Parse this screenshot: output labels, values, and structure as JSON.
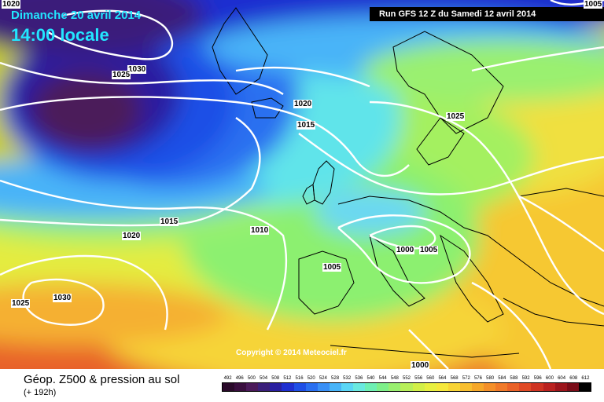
{
  "header": {
    "date": "Dimanche 20 avril 2014",
    "time": "14:00 locale",
    "run": "Run GFS 12 Z du Samedi 12 avril 2014"
  },
  "copyright": "Copyright © 2014 Meteociel.fr",
  "footer": {
    "title": "Géop. Z500 & pression au sol",
    "subtitle": "(+ 192h)"
  },
  "isobar_labels": [
    "1020",
    "1030",
    "1025",
    "1020",
    "1015",
    "1025",
    "1015",
    "1020",
    "1010",
    "1005",
    "1000",
    "1005",
    "1025",
    "1030",
    "1000",
    "1005"
  ],
  "legend": {
    "values": [
      "492",
      "496",
      "500",
      "504",
      "508",
      "512",
      "516",
      "520",
      "524",
      "528",
      "532",
      "536",
      "540",
      "544",
      "548",
      "552",
      "556",
      "560",
      "564",
      "568",
      "572",
      "576",
      "580",
      "584",
      "588",
      "592",
      "596",
      "600",
      "604",
      "608",
      "612"
    ],
    "colors": [
      "#2a0a2a",
      "#3a0f3f",
      "#4b1a5a",
      "#3b1f7a",
      "#2a1fa0",
      "#1f2fd0",
      "#1f4fe6",
      "#2a6ff0",
      "#3a90f6",
      "#48b4f8",
      "#5ad6f6",
      "#6ae9e0",
      "#6ef0b4",
      "#7ef08a",
      "#9af070",
      "#b8f05a",
      "#d2f048",
      "#e8f040",
      "#f6e83c",
      "#f8d436",
      "#f8bf30",
      "#f6a82a",
      "#f4902a",
      "#f07a2a",
      "#ea6228",
      "#e04a26",
      "#cf3423",
      "#ba2220",
      "#9c151c",
      "#7a0c18",
      "#000000"
    ]
  }
}
